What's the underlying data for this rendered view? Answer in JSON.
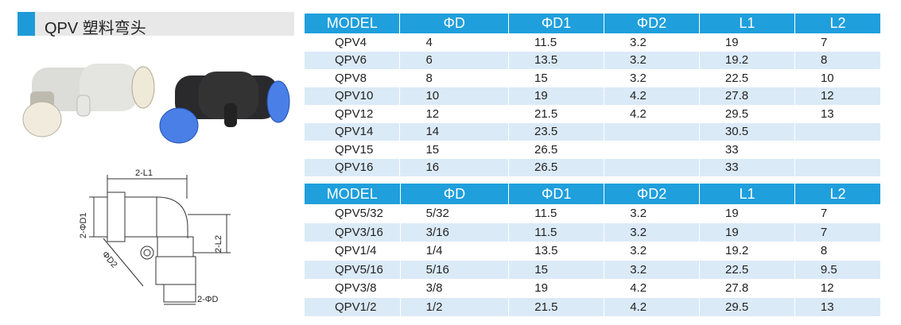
{
  "header": {
    "title": "QPV 塑料弯头"
  },
  "drawing": {
    "labels": [
      "2-L1",
      "2-ΦD1",
      "ΦD2",
      "2-L2",
      "2-ΦD"
    ]
  },
  "tables": [
    {
      "columns": [
        "MODEL",
        "ΦD",
        "ΦD1",
        "ΦD2",
        "L1",
        "L2"
      ],
      "rows": [
        [
          "QPV4",
          "4",
          "11.5",
          "3.2",
          "19",
          "7"
        ],
        [
          "QPV6",
          "6",
          "13.5",
          "3.2",
          "19.2",
          "8"
        ],
        [
          "QPV8",
          "8",
          "15",
          "3.2",
          "22.5",
          "10"
        ],
        [
          "QPV10",
          "10",
          "19",
          "4.2",
          "27.8",
          "12"
        ],
        [
          "QPV12",
          "12",
          "21.5",
          "4.2",
          "29.5",
          "13"
        ],
        [
          "QPV14",
          "14",
          "23.5",
          null,
          "30.5",
          null
        ],
        [
          "QPV15",
          "15",
          "26.5",
          null,
          "33",
          null
        ],
        [
          "QPV16",
          "16",
          "26.5",
          null,
          "33",
          null
        ]
      ]
    },
    {
      "columns": [
        "MODEL",
        "ΦD",
        "ΦD1",
        "ΦD2",
        "L1",
        "L2"
      ],
      "rows": [
        [
          "QPV5/32",
          "5/32",
          "11.5",
          "3.2",
          "19",
          "7"
        ],
        [
          "QPV3/16",
          "3/16",
          "11.5",
          "3.2",
          "19",
          "7"
        ],
        [
          "QPV1/4",
          "1/4",
          "13.5",
          "3.2",
          "19.2",
          "8"
        ],
        [
          "QPV5/16",
          "5/16",
          "15",
          "3.2",
          "22.5",
          "9.5"
        ],
        [
          "QPV3/8",
          "3/8",
          "19",
          "4.2",
          "27.8",
          "12"
        ],
        [
          "QPV1/2",
          "1/2",
          "21.5",
          "4.2",
          "29.5",
          "13"
        ]
      ]
    }
  ]
}
